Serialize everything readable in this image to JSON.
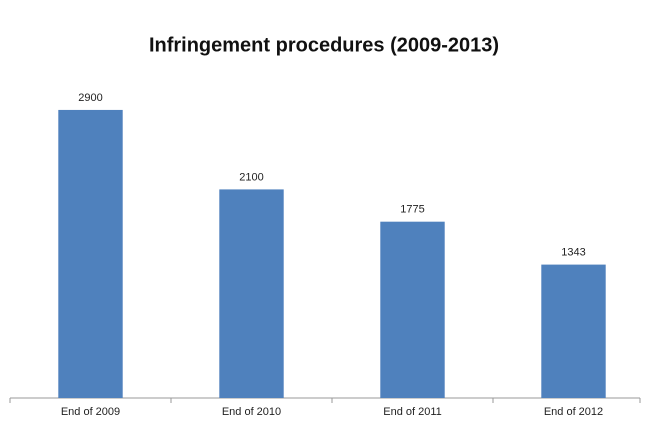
{
  "chart_data": {
    "type": "bar",
    "title": "Infringement procedures (2009-2013)",
    "categories": [
      "End of 2009",
      "End of 2010",
      "End of 2011",
      "End of 2012"
    ],
    "values": [
      2900,
      2100,
      1775,
      1343
    ],
    "color": "#4f81bd",
    "ylim": [
      0,
      3000
    ]
  }
}
